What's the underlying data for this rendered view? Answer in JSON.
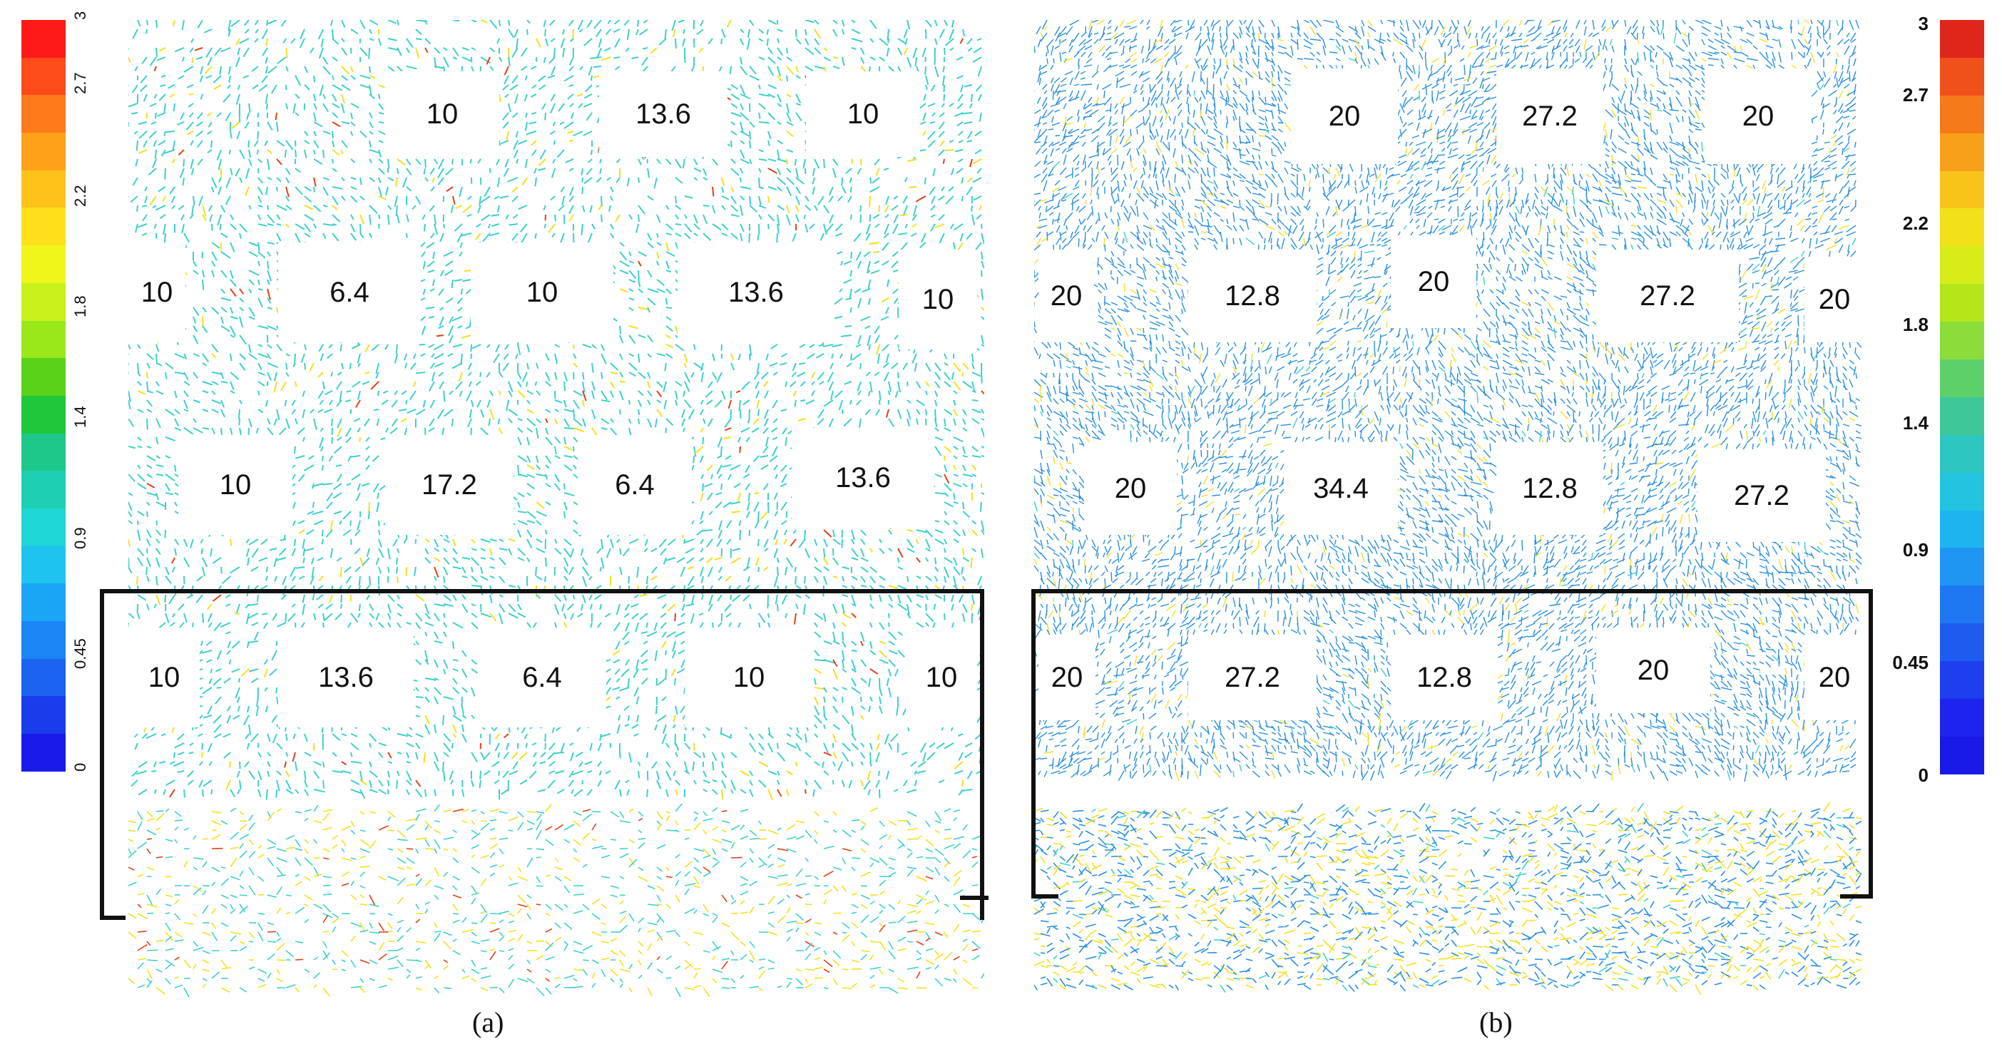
{
  "colorbar_left": {
    "ticks": [
      "3",
      "2.7",
      "2.2",
      "1.8",
      "1.4",
      "0.9",
      "0.45",
      "0"
    ],
    "colors": [
      "#ff1a1a",
      "#ff4a1a",
      "#ff7a1a",
      "#ffa21a",
      "#ffc21a",
      "#ffe01a",
      "#f0f51a",
      "#c8f01a",
      "#9ae81a",
      "#5ad21a",
      "#1ec83a",
      "#1ec88a",
      "#1ecfb4",
      "#1ed6d6",
      "#1ec4ef",
      "#1aa6f5",
      "#1a86f5",
      "#1a64f0",
      "#1a3cea",
      "#1a1aea"
    ]
  },
  "colorbar_right": {
    "ticks": [
      "3",
      "2.7",
      "2.2",
      "1.8",
      "1.4",
      "0.9",
      "0.45",
      "0"
    ],
    "colors": [
      "#e0261a",
      "#f0501a",
      "#f47a1a",
      "#f8a01a",
      "#f8c41a",
      "#f2e01a",
      "#d8ec1a",
      "#b4e61a",
      "#8cdc3a",
      "#5ed06a",
      "#3ec89a",
      "#2ec6c0",
      "#22c4e0",
      "#1eb4f0",
      "#1e96f2",
      "#1e78f2",
      "#1e5cf0",
      "#1e3ef0",
      "#1e24ee",
      "#1a1ae8"
    ]
  },
  "panel_a": {
    "caption": "(a)",
    "blocks": [
      "10",
      "13.6",
      "10",
      "10",
      "6.4",
      "10",
      "13.6",
      "10",
      "10",
      "17.2",
      "6.4",
      "13.6",
      "10",
      "13.6",
      "6.4",
      "10",
      "10"
    ]
  },
  "panel_b": {
    "caption": "(b)",
    "blocks": [
      "20",
      "27.2",
      "20",
      "20",
      "12.8",
      "20",
      "27.2",
      "20",
      "20",
      "34.4",
      "12.8",
      "27.2",
      "20",
      "27.2",
      "12.8",
      "20",
      "20"
    ]
  },
  "palette": {
    "field_a": "#3fd0c8",
    "field_b": "#2a8fe0",
    "accent_yellow": "#f2e020",
    "accent_red": "#e0401a",
    "frame": "#111111"
  }
}
